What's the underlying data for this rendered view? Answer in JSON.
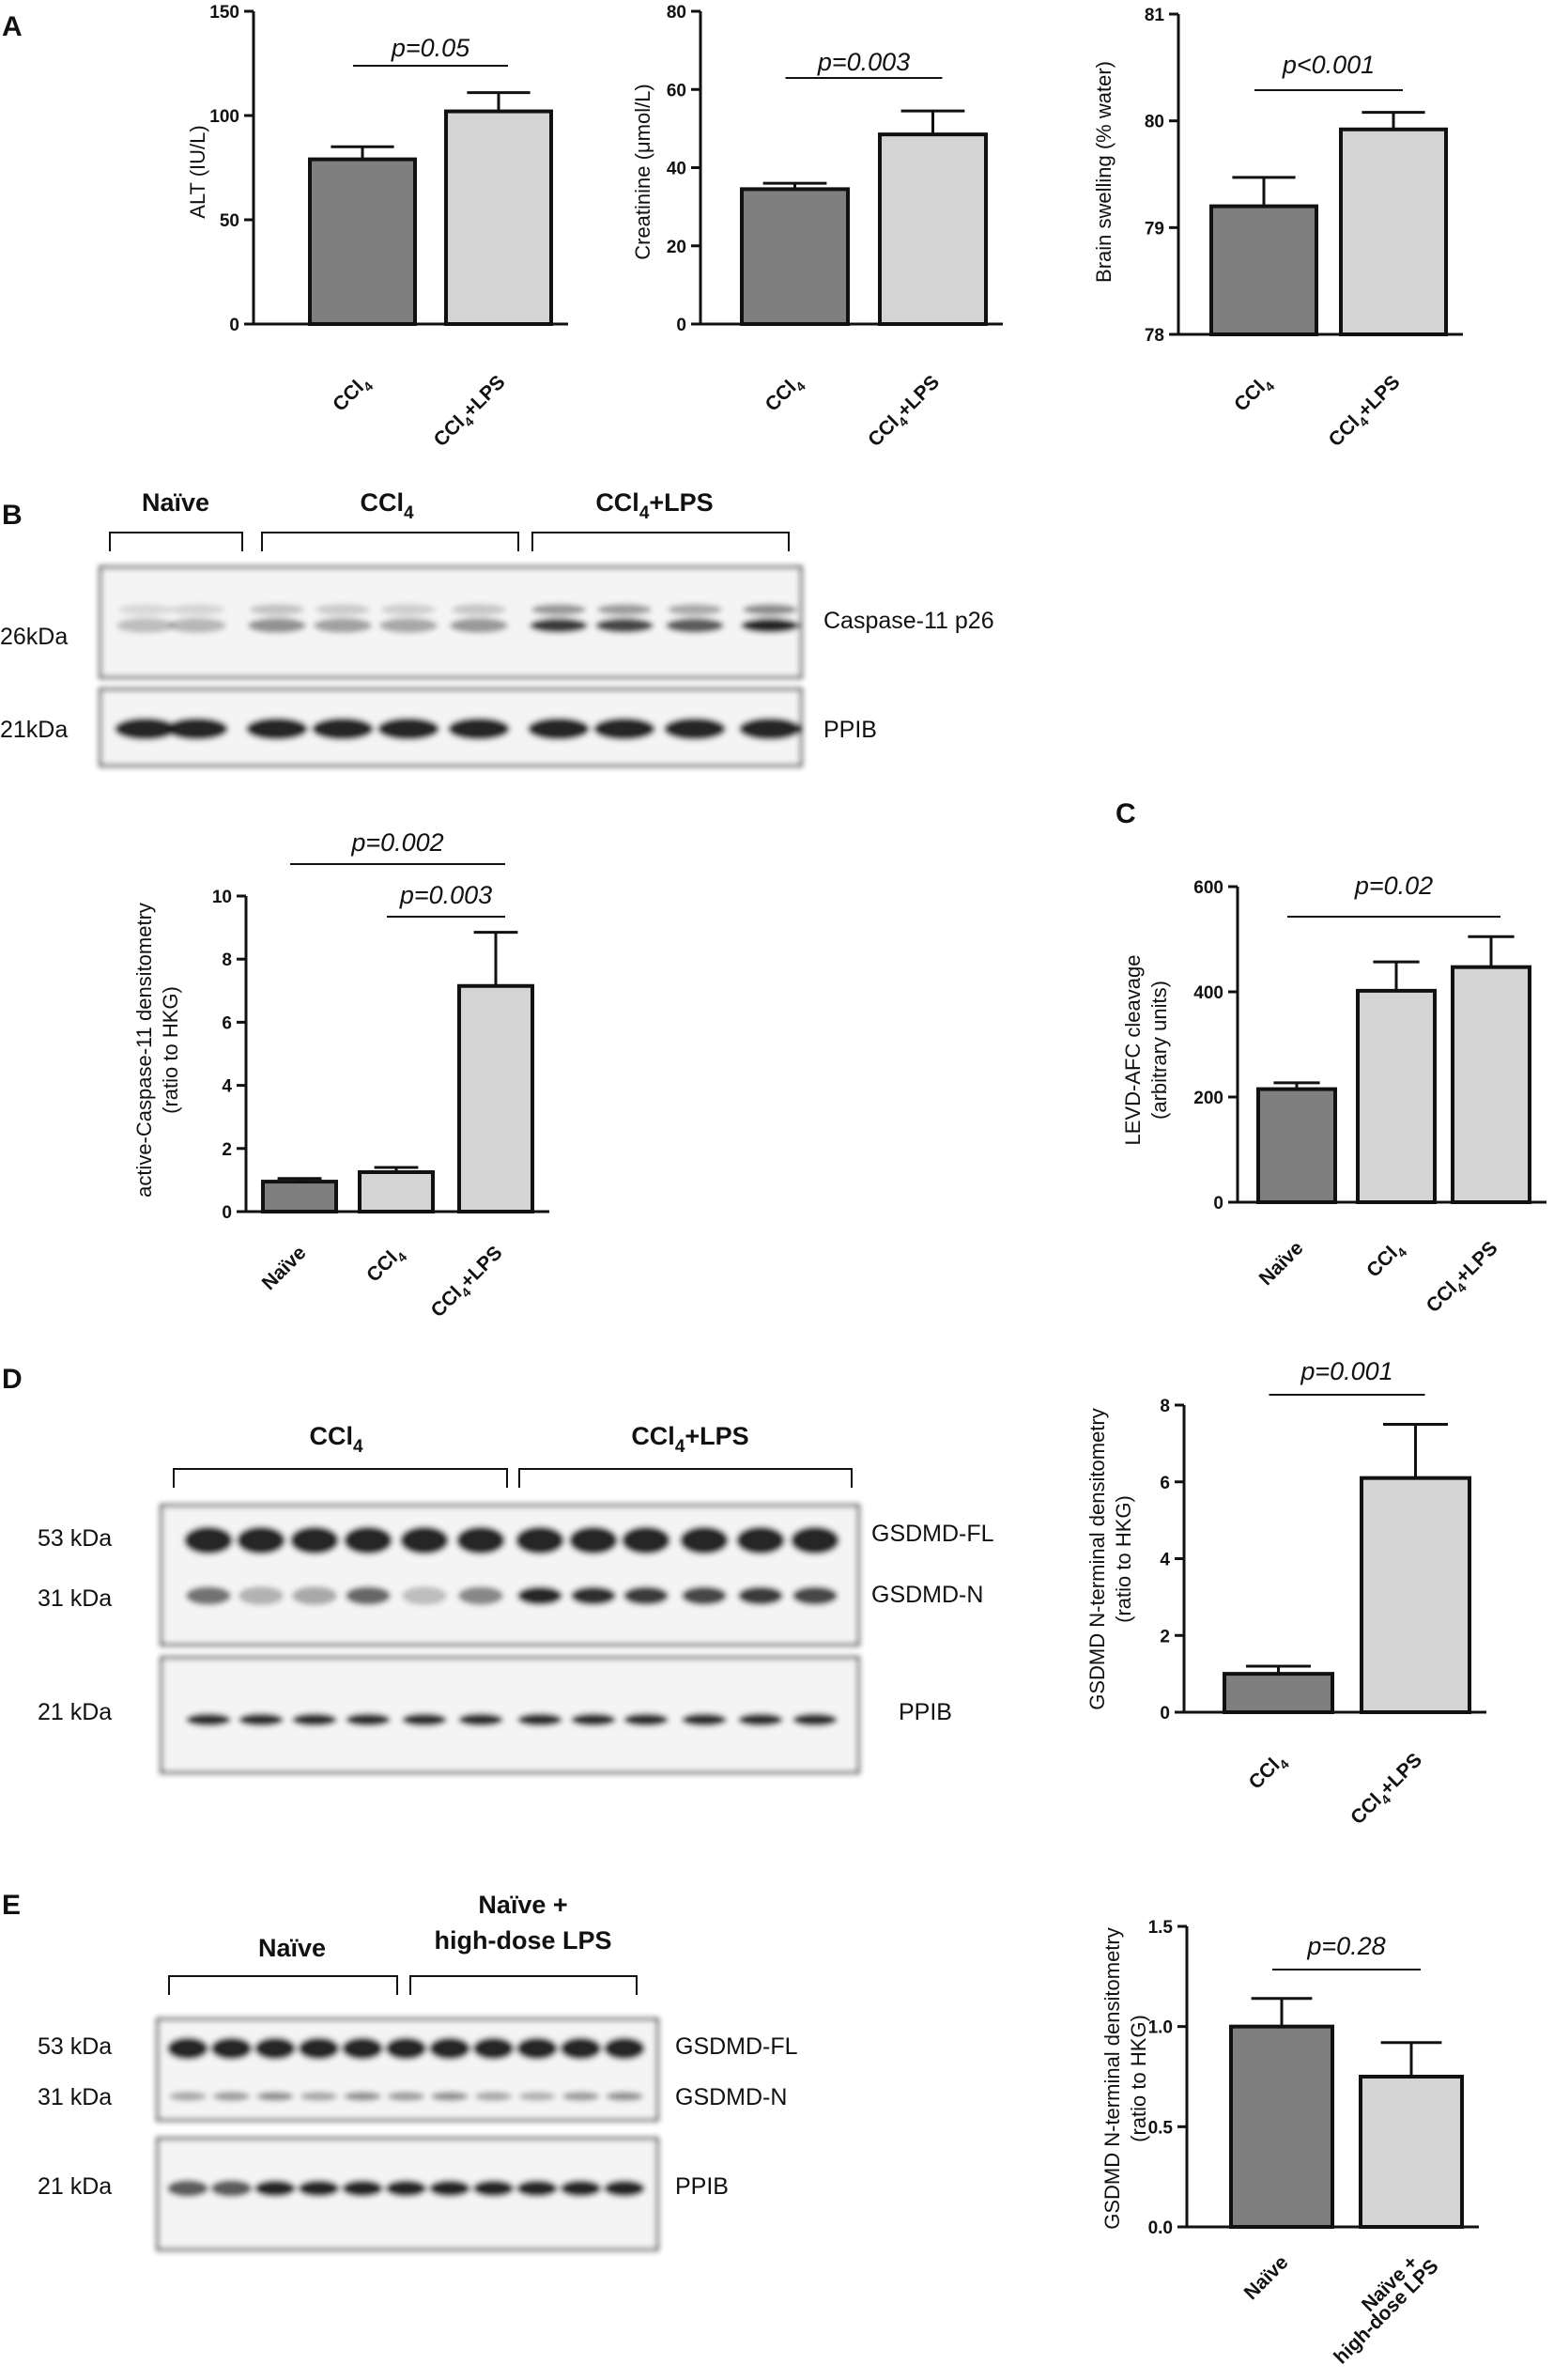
{
  "colors": {
    "dark_bar": "#7f7f7f",
    "light_bar": "#d4d4d4",
    "ink": "#111111"
  },
  "panels": {
    "A": "A",
    "B": "B",
    "C": "C",
    "D": "D",
    "E": "E"
  },
  "blots": {
    "B": {
      "groups": [
        "Naïve",
        "CCl4",
        "CCl4+LPS"
      ],
      "kda": [
        "26kDa",
        "21kDa"
      ],
      "proteins": [
        "Caspase-11  p26",
        "PPIB"
      ],
      "target_intensity": [
        0.25,
        0.28,
        0.45,
        0.38,
        0.35,
        0.42,
        0.85,
        0.8,
        0.7,
        0.95
      ]
    },
    "D": {
      "groups": [
        "CCl4",
        "CCl4+LPS"
      ],
      "kda": [
        "53 kDa",
        "31 kDa",
        "21 kDa"
      ],
      "proteins": [
        "GSDMD-FL",
        "GSDMD-N",
        "PPIB"
      ],
      "n_intensity": [
        0.6,
        0.3,
        0.35,
        0.65,
        0.25,
        0.5,
        0.95,
        0.9,
        0.85,
        0.8,
        0.85,
        0.8
      ]
    },
    "E": {
      "groups": [
        "Naïve",
        "Naïve +",
        "high-dose LPS"
      ],
      "kda": [
        "53 kDa",
        "31 kDa",
        "21 kDa"
      ],
      "proteins": [
        "GSDMD-FL",
        "GSDMD-N",
        "PPIB"
      ],
      "n_intensity": [
        0.35,
        0.4,
        0.45,
        0.35,
        0.45,
        0.4,
        0.45,
        0.35,
        0.3,
        0.4,
        0.45
      ]
    }
  },
  "chart_data": [
    {
      "id": "A1",
      "type": "bar",
      "categories": [
        "CCl4",
        "CCl4+LPS"
      ],
      "values": [
        79,
        102
      ],
      "errors": [
        6,
        9
      ],
      "ylabel": "ALT (IU/L)",
      "ylim": [
        0,
        150
      ],
      "yticks": [
        "0",
        "50",
        "100",
        "150"
      ],
      "pvalues": [
        "p=0.05"
      ]
    },
    {
      "id": "A2",
      "type": "bar",
      "categories": [
        "CCl4",
        "CCl4+LPS"
      ],
      "values": [
        34.5,
        48.5
      ],
      "errors": [
        1.5,
        6
      ],
      "ylabel": "Creatinine (μmol/L)",
      "ylim": [
        0,
        80
      ],
      "yticks": [
        "0",
        "20",
        "40",
        "60",
        "80"
      ],
      "pvalues": [
        "p=0.003"
      ]
    },
    {
      "id": "A3",
      "type": "bar",
      "categories": [
        "CCl4",
        "CCl4+LPS"
      ],
      "values": [
        79.2,
        79.92
      ],
      "errors": [
        0.27,
        0.16
      ],
      "ylabel": "Brain swelling (% water)",
      "ylim": [
        78,
        81
      ],
      "yticks": [
        "78",
        "79",
        "80",
        "81"
      ],
      "pvalues": [
        "p<0.001"
      ]
    },
    {
      "id": "B",
      "type": "bar",
      "categories": [
        "Naïve",
        "CCl4",
        "CCl4+LPS"
      ],
      "values": [
        0.95,
        1.25,
        7.15
      ],
      "errors": [
        0.1,
        0.15,
        1.7
      ],
      "ylabel": [
        "active-Caspase-11 densitometry",
        "(ratio to HKG)"
      ],
      "ylim": [
        0,
        10
      ],
      "yticks": [
        "0",
        "2",
        "4",
        "6",
        "8",
        "10"
      ],
      "pvalues": [
        "p=0.002",
        "p=0.003"
      ]
    },
    {
      "id": "C",
      "type": "bar",
      "categories": [
        "Naïve",
        "CCl4",
        "CCl4+LPS"
      ],
      "values": [
        215,
        402,
        447
      ],
      "errors": [
        12,
        55,
        58
      ],
      "ylabel": [
        "LEVD-AFC cleavage",
        "(arbitrary units)"
      ],
      "ylim": [
        0,
        600
      ],
      "yticks": [
        "0",
        "200",
        "400",
        "600"
      ],
      "pvalues": [
        "p=0.02"
      ]
    },
    {
      "id": "D",
      "type": "bar",
      "categories": [
        "CCl4",
        "CCl4+LPS"
      ],
      "values": [
        1.0,
        6.1
      ],
      "errors": [
        0.2,
        1.4
      ],
      "ylabel": [
        "GSDMD N-terminal densitometry",
        "(ratio to HKG)"
      ],
      "ylim": [
        0,
        8
      ],
      "yticks": [
        "0",
        "2",
        "4",
        "6",
        "8"
      ],
      "pvalues": [
        "p=0.001"
      ]
    },
    {
      "id": "E",
      "type": "bar",
      "categories": [
        "Naïve",
        [
          "Naïve +",
          "high-dose LPS"
        ]
      ],
      "values": [
        1.0,
        0.75
      ],
      "errors": [
        0.14,
        0.17
      ],
      "ylabel": [
        "GSDMD N-terminal densitometry",
        "(ratio to HKG)"
      ],
      "ylim": [
        0,
        1.5
      ],
      "yticks": [
        "0.0",
        "0.5",
        "1.0",
        "1.5"
      ],
      "pvalues": [
        "p=0.28"
      ]
    }
  ]
}
